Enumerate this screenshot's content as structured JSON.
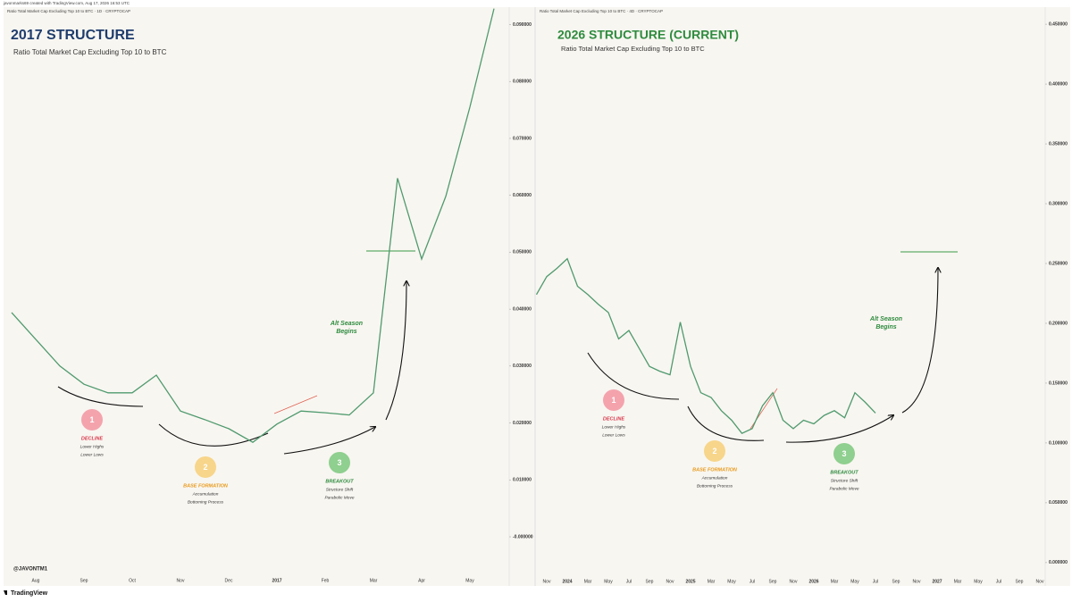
{
  "header": "javonmarks69 created with TradingView.com, Aug 17, 2026 16:53 UTC",
  "handle": "@JAVONTM1",
  "brand": "TradingView",
  "chart_data": [
    {
      "type": "line",
      "symbol": "Ratio Total Market Cap Excluding Top 10 to BTC · 1D · CRYPTOCAP",
      "title": "2017 STRUCTURE",
      "subtitle": "Ratio Total Market Cap Excluding Top 10 to BTC",
      "categories": [
        null,
        "Aug",
        null,
        "Sep",
        null,
        "Oct",
        null,
        "Nov",
        null,
        "Dec",
        null,
        "2017",
        null,
        "Feb",
        null,
        "Mar",
        null,
        "Apr",
        null,
        "May",
        null
      ],
      "series": [
        {
          "color": "#4f9a6e",
          "values": [
            0.0394,
            0.0347,
            0.03,
            0.0268,
            0.0253,
            0.0253,
            0.0284,
            0.0221,
            0.0206,
            0.019,
            0.0166,
            0.0198,
            0.0221,
            0.0218,
            0.0214,
            0.0253,
            0.063,
            0.0488,
            0.0598,
            0.0755,
            0.0928
          ]
        }
      ],
      "ylim": [
        -0.008,
        0.094
      ],
      "yticks": [
        {
          "value": 0,
          "label": "-0.000000"
        },
        {
          "value": 0.01,
          "label": "0.010000"
        },
        {
          "value": 0.02,
          "label": "0.020000"
        },
        {
          "value": 0.03,
          "label": "0.030000"
        },
        {
          "value": 0.04,
          "label": "0.040000"
        },
        {
          "value": 0.05,
          "label": "0.050000"
        },
        {
          "value": 0.06,
          "label": "0.060000"
        },
        {
          "value": 0.07,
          "label": "0.070000"
        },
        {
          "value": 0.08,
          "label": "0.080000"
        },
        {
          "value": 0.09,
          "label": "0.090000"
        }
      ],
      "phases": [
        {
          "number": 1,
          "title": "DECLINE",
          "lines": [
            "Lower Highs",
            "Lower Lows"
          ]
        },
        {
          "number": 2,
          "title": "BASE FORMATION",
          "lines": [
            "Accumulation",
            "Bottoming Process"
          ]
        },
        {
          "number": 3,
          "title": "BREAKOUT",
          "lines": [
            "Structure Shift",
            "Parabolic Move"
          ]
        }
      ],
      "callout": [
        "Alt Season",
        "Begins"
      ]
    },
    {
      "type": "line",
      "symbol": "Ratio Total Market Cap Excluding Top 10 to BTC · 4D · CRYPTOCAP",
      "title": "2026 STRUCTURE (CURRENT)",
      "subtitle": "Ratio Total Market Cap Excluding Top 10 to BTC",
      "categories": [
        null,
        "Nov",
        null,
        "2024",
        null,
        "Mar",
        null,
        "May",
        null,
        "Jul",
        null,
        "Sep",
        null,
        "Nov",
        null,
        "2025",
        null,
        "Mar",
        null,
        "May",
        null,
        "Jul",
        null,
        "Sep",
        null,
        "Nov",
        null,
        "2026",
        null,
        "Mar",
        null,
        "May",
        null,
        "Jul",
        null,
        "Sep",
        null,
        "Nov",
        null,
        "2027",
        null,
        "Mar",
        null,
        "May",
        null,
        "Jul",
        null,
        "Sep",
        null,
        "Nov"
      ],
      "series": [
        {
          "color": "#4f9a6e",
          "values": [
            0.224,
            0.239,
            0.246,
            0.254,
            0.231,
            0.224,
            0.216,
            0.209,
            0.187,
            0.194,
            0.179,
            0.164,
            0.16,
            0.157,
            0.201,
            0.164,
            0.142,
            0.138,
            0.127,
            0.119,
            0.108,
            0.112,
            0.131,
            0.142,
            0.119,
            0.112,
            0.119,
            0.116,
            0.123,
            0.127,
            0.121,
            0.142,
            0.134,
            0.125,
            null,
            null,
            null,
            null,
            null,
            null,
            null,
            null,
            null,
            null,
            null,
            null,
            null,
            null,
            null,
            null
          ]
        }
      ],
      "ylim": [
        -0.018,
        0.465
      ],
      "yticks": [
        {
          "value": 0,
          "label": "0.000000"
        },
        {
          "value": 0.05,
          "label": "0.050000"
        },
        {
          "value": 0.1,
          "label": "0.100000"
        },
        {
          "value": 0.15,
          "label": "0.150000"
        },
        {
          "value": 0.2,
          "label": "0.200000"
        },
        {
          "value": 0.25,
          "label": "0.250000"
        },
        {
          "value": 0.3,
          "label": "0.300000"
        },
        {
          "value": 0.35,
          "label": "0.350000"
        },
        {
          "value": 0.4,
          "label": "0.400000"
        },
        {
          "value": 0.45,
          "label": "0.450000"
        }
      ],
      "phases": [
        {
          "number": 1,
          "title": "DECLINE",
          "lines": [
            "Lower Highs",
            "Lower Lows"
          ]
        },
        {
          "number": 2,
          "title": "BASE FORMATION",
          "lines": [
            "Accumulation",
            "Bottoming Process"
          ]
        },
        {
          "number": 3,
          "title": "BREAKOUT",
          "lines": [
            "Structure Shift",
            "Parabolic Move"
          ]
        }
      ],
      "callout": [
        "Alt Season",
        "Begins"
      ]
    }
  ]
}
